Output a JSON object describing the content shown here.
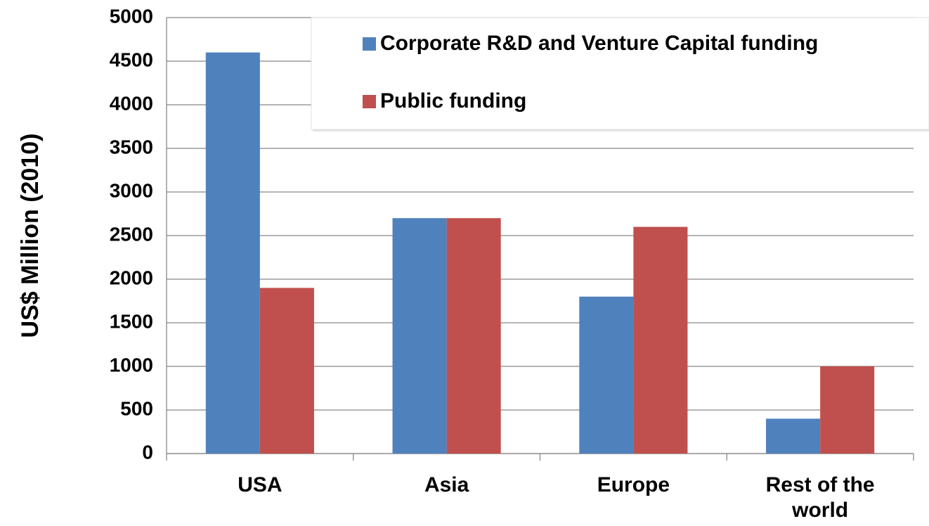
{
  "chart_data": {
    "type": "bar",
    "y_label": "US$ Million (2010)",
    "categories": [
      "USA",
      "Asia",
      "Europe",
      "Rest of the world"
    ],
    "series": [
      {
        "name": "Corporate R&D and Venture Capital funding",
        "color": "#4f81bd",
        "values": [
          4600,
          2700,
          1800,
          400
        ]
      },
      {
        "name": "Public funding",
        "color": "#c0504d",
        "values": [
          1900,
          2700,
          2600,
          1000
        ]
      }
    ],
    "ylim": [
      0,
      5000
    ],
    "yticks": [
      0,
      500,
      1000,
      1500,
      2000,
      2500,
      3000,
      3500,
      4000,
      4500,
      5000
    ],
    "grid": true,
    "legend": "top-right"
  }
}
